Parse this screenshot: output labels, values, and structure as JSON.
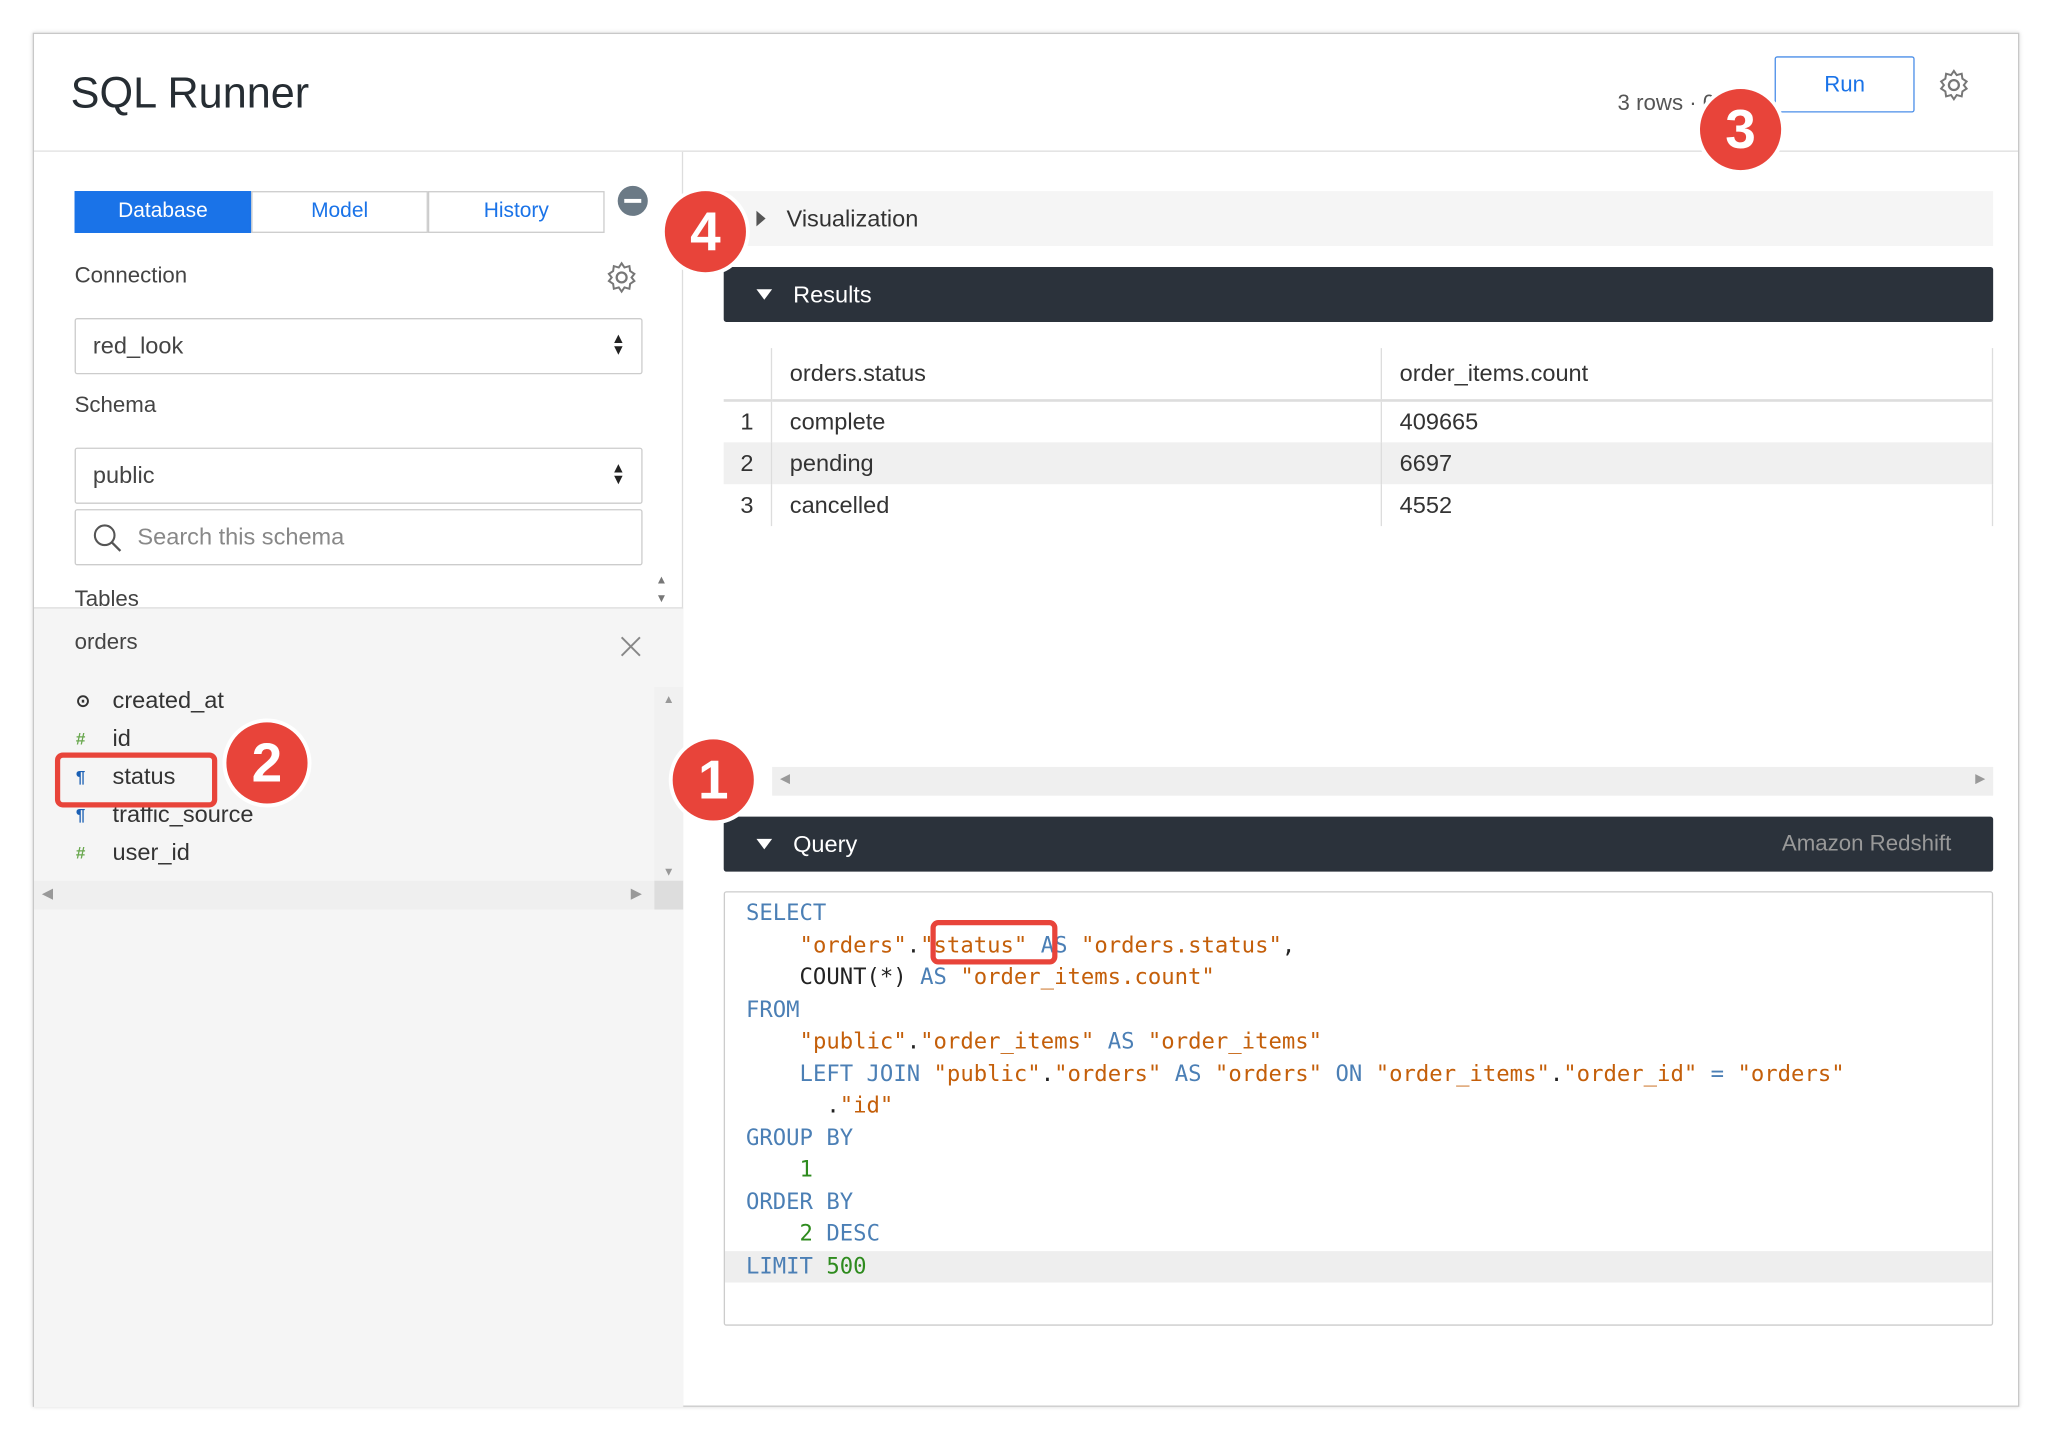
{
  "header": {
    "title": "SQL Runner",
    "rows_info": "3 rows · 0",
    "run_label": "Run"
  },
  "sidebar": {
    "tabs": [
      {
        "label": "Database",
        "active": true
      },
      {
        "label": "Model",
        "active": false
      },
      {
        "label": "History",
        "active": false
      }
    ],
    "connection_label": "Connection",
    "connection_value": "red_look",
    "schema_label": "Schema",
    "schema_value": "public",
    "search_placeholder": "Search this schema",
    "tables_label": "Tables",
    "table_name": "orders",
    "fields": [
      {
        "name": "created_at",
        "icon": "clock-icon",
        "glyph": "⊙",
        "color": "#333"
      },
      {
        "name": "id",
        "icon": "number-icon",
        "glyph": "#",
        "color": "#6aa84f"
      },
      {
        "name": "status",
        "icon": "string-icon",
        "glyph": "¶",
        "color": "#1a5fb4"
      },
      {
        "name": "traffic_source",
        "icon": "string-icon",
        "glyph": "¶",
        "color": "#1a5fb4"
      },
      {
        "name": "user_id",
        "icon": "number-icon",
        "glyph": "#",
        "color": "#6aa84f"
      }
    ]
  },
  "main": {
    "visualization_label": "Visualization",
    "results_label": "Results",
    "columns": [
      "orders.status",
      "order_items.count"
    ],
    "rows": [
      [
        "1",
        "complete",
        "409665"
      ],
      [
        "2",
        "pending",
        "6697"
      ],
      [
        "3",
        "cancelled",
        "4552"
      ]
    ],
    "query_label": "Query",
    "dialect": "Amazon Redshift",
    "query_lines": [
      [
        [
          "kw",
          "SELECT"
        ]
      ],
      [
        [
          "pl",
          "    "
        ],
        [
          "st",
          "\"orders\""
        ],
        [
          "pl",
          "."
        ],
        [
          "st",
          "\"status\""
        ],
        [
          "pl",
          " "
        ],
        [
          "kw",
          "AS"
        ],
        [
          "pl",
          " "
        ],
        [
          "st",
          "\"orders.status\""
        ],
        [
          "pl",
          ","
        ]
      ],
      [
        [
          "pl",
          "    COUNT(*) "
        ],
        [
          "kw",
          "AS"
        ],
        [
          "pl",
          " "
        ],
        [
          "st",
          "\"order_items.count\""
        ]
      ],
      [
        [
          "kw",
          "FROM"
        ]
      ],
      [
        [
          "pl",
          "    "
        ],
        [
          "st",
          "\"public\""
        ],
        [
          "pl",
          "."
        ],
        [
          "st",
          "\"order_items\""
        ],
        [
          "pl",
          " "
        ],
        [
          "kw",
          "AS"
        ],
        [
          "pl",
          " "
        ],
        [
          "st",
          "\"order_items\""
        ]
      ],
      [
        [
          "pl",
          "    "
        ],
        [
          "kw",
          "LEFT JOIN"
        ],
        [
          "pl",
          " "
        ],
        [
          "st",
          "\"public\""
        ],
        [
          "pl",
          "."
        ],
        [
          "st",
          "\"orders\""
        ],
        [
          "pl",
          " "
        ],
        [
          "kw",
          "AS"
        ],
        [
          "pl",
          " "
        ],
        [
          "st",
          "\"orders\""
        ],
        [
          "pl",
          " "
        ],
        [
          "kw",
          "ON"
        ],
        [
          "pl",
          " "
        ],
        [
          "st",
          "\"order_items\""
        ],
        [
          "pl",
          "."
        ],
        [
          "st",
          "\"order_id\""
        ],
        [
          "pl",
          " "
        ],
        [
          "kw",
          "="
        ],
        [
          "pl",
          " "
        ],
        [
          "st",
          "\"orders\""
        ]
      ],
      [
        [
          "pl",
          "      ."
        ],
        [
          "st",
          "\"id\""
        ]
      ],
      [
        [
          "kw",
          "GROUP BY"
        ]
      ],
      [
        [
          "pl",
          "    "
        ],
        [
          "nm",
          "1"
        ]
      ],
      [
        [
          "kw",
          "ORDER BY"
        ]
      ],
      [
        [
          "pl",
          "    "
        ],
        [
          "nm",
          "2"
        ],
        [
          "pl",
          " "
        ],
        [
          "kw",
          "DESC"
        ]
      ],
      [
        [
          "kw",
          "LIMIT"
        ],
        [
          "pl",
          " "
        ],
        [
          "nm",
          "500"
        ]
      ]
    ]
  },
  "callouts": [
    "1",
    "2",
    "3",
    "4"
  ],
  "colors": {
    "accent": "#1a73e8",
    "dark_bar": "#2b323b",
    "callout": "#e8443a"
  }
}
